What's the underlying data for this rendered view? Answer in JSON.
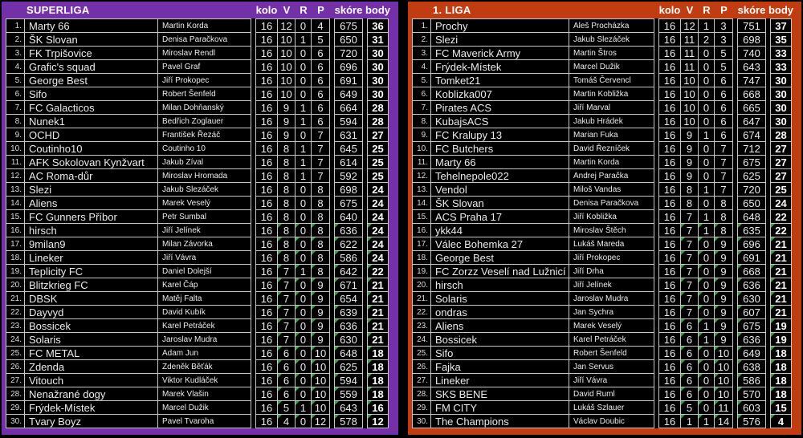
{
  "green_mark_color": "#3F9B4C",
  "tables": [
    {
      "title": "SUPERLIGA",
      "accent": "#7430A8",
      "green_marks_start_rank": 16,
      "columns": {
        "kolo": "kolo",
        "v": "V",
        "r": "R",
        "p": "P",
        "skore": "skóre",
        "body": "body"
      },
      "rows": [
        [
          "1.",
          "Marty 66",
          "Martin Korda",
          "16",
          "12",
          "0",
          "4",
          "675",
          "36"
        ],
        [
          "2.",
          "ŠK Slovan",
          "Denisa Paračkova",
          "16",
          "10",
          "1",
          "5",
          "650",
          "31"
        ],
        [
          "3.",
          "FK Trpišovice",
          "Miroslav Rendl",
          "16",
          "10",
          "0",
          "6",
          "720",
          "30"
        ],
        [
          "4.",
          "Grafic's squad",
          "Pavel Graf",
          "16",
          "10",
          "0",
          "6",
          "696",
          "30"
        ],
        [
          "5.",
          "George Best",
          "Jiří Prokopec",
          "16",
          "10",
          "0",
          "6",
          "691",
          "30"
        ],
        [
          "6.",
          "Sifo",
          "Robert Šenfeld",
          "16",
          "10",
          "0",
          "6",
          "649",
          "30"
        ],
        [
          "7.",
          "FC Galacticos",
          "Milan Dohňanský",
          "16",
          "9",
          "1",
          "6",
          "664",
          "28"
        ],
        [
          "8.",
          "Nunek1",
          "Bedřich Zoglauer",
          "16",
          "9",
          "1",
          "6",
          "594",
          "28"
        ],
        [
          "9.",
          "OCHD",
          "František Řezáč",
          "16",
          "9",
          "0",
          "7",
          "631",
          "27"
        ],
        [
          "10.",
          "Coutinho10",
          "Coutinho 10",
          "16",
          "8",
          "1",
          "7",
          "645",
          "25"
        ],
        [
          "11.",
          "AFK Sokolovan Kynžvart",
          "Jakub Zíval",
          "16",
          "8",
          "1",
          "7",
          "614",
          "25"
        ],
        [
          "12.",
          "AC Roma-důr",
          "Miroslav Hromada",
          "16",
          "8",
          "1",
          "7",
          "592",
          "25"
        ],
        [
          "13.",
          "Slezi",
          "Jakub Slezáček",
          "16",
          "8",
          "0",
          "8",
          "698",
          "24"
        ],
        [
          "14.",
          "Aliens",
          "Marek Veselý",
          "16",
          "8",
          "0",
          "8",
          "675",
          "24"
        ],
        [
          "15.",
          "FC Gunners Příbor",
          "Petr Sumbal",
          "16",
          "8",
          "0",
          "8",
          "640",
          "24"
        ],
        [
          "16.",
          "hirsch",
          "Jiří Jelínek",
          "16",
          "8",
          "0",
          "8",
          "636",
          "24"
        ],
        [
          "17.",
          "9milan9",
          "Milan Závorka",
          "16",
          "8",
          "0",
          "8",
          "622",
          "24"
        ],
        [
          "18.",
          "Lineker",
          "Jiří Vávra",
          "16",
          "8",
          "0",
          "8",
          "586",
          "24"
        ],
        [
          "19.",
          "Teplicity FC",
          "Daniel Dolejší",
          "16",
          "7",
          "1",
          "8",
          "642",
          "22"
        ],
        [
          "20.",
          "Blitzkrieg FC",
          "Karel Čáp",
          "16",
          "7",
          "0",
          "9",
          "671",
          "21"
        ],
        [
          "21.",
          "DBSK",
          "Matěj Falta",
          "16",
          "7",
          "0",
          "9",
          "654",
          "21"
        ],
        [
          "22.",
          "Dayvyd",
          "David Kubík",
          "16",
          "7",
          "0",
          "9",
          "639",
          "21"
        ],
        [
          "23.",
          "Bossicek",
          "Karel Petráček",
          "16",
          "7",
          "0",
          "9",
          "636",
          "21"
        ],
        [
          "24.",
          "Solaris",
          "Jaroslav Mudra",
          "16",
          "7",
          "0",
          "9",
          "630",
          "21"
        ],
        [
          "25.",
          "FC METAL",
          "Adam Jun",
          "16",
          "6",
          "0",
          "10",
          "648",
          "18"
        ],
        [
          "26.",
          "Zdenda",
          "Zdeněk Běťák",
          "16",
          "6",
          "0",
          "10",
          "625",
          "18"
        ],
        [
          "27.",
          "Vitouch",
          "Viktor Kudláček",
          "16",
          "6",
          "0",
          "10",
          "594",
          "18"
        ],
        [
          "28.",
          "Nenažrané dogy",
          "Marek Vlašin",
          "16",
          "6",
          "0",
          "10",
          "559",
          "18"
        ],
        [
          "29.",
          "Frýdek-Místek",
          "Marcel Dužik",
          "16",
          "5",
          "1",
          "10",
          "643",
          "16"
        ],
        [
          "30.",
          "Tvary Boyz",
          "Pavel Tvaroha",
          "16",
          "4",
          "0",
          "12",
          "578",
          "12"
        ]
      ]
    },
    {
      "title": "1. LIGA",
      "accent": "#C23C12",
      "green_marks_start_rank": 16,
      "columns": {
        "kolo": "kolo",
        "v": "V",
        "r": "R",
        "p": "P",
        "skore": "skóre",
        "body": "body"
      },
      "rows": [
        [
          "1.",
          "Prochy",
          "Aleš Procházka",
          "16",
          "12",
          "1",
          "3",
          "751",
          "37"
        ],
        [
          "2.",
          "Slezi",
          "Jakub Slezáček",
          "16",
          "11",
          "2",
          "3",
          "698",
          "35"
        ],
        [
          "3.",
          "FC Maverick Army",
          "Martin Štros",
          "16",
          "11",
          "0",
          "5",
          "740",
          "33"
        ],
        [
          "4.",
          "Frýdek-Místek",
          "Marcel Dužik",
          "16",
          "11",
          "0",
          "5",
          "643",
          "33"
        ],
        [
          "5.",
          "Tomket21",
          "Tomáš Červencl",
          "16",
          "10",
          "0",
          "6",
          "747",
          "30"
        ],
        [
          "6.",
          "Koblizka007",
          "Martin Kobližka",
          "16",
          "10",
          "0",
          "6",
          "668",
          "30"
        ],
        [
          "7.",
          "Pirates ACS",
          "Jiří Marval",
          "16",
          "10",
          "0",
          "6",
          "665",
          "30"
        ],
        [
          "8.",
          "KubajsACS",
          "Jakub Hrádek",
          "16",
          "10",
          "0",
          "6",
          "647",
          "30"
        ],
        [
          "9.",
          "FC Kralupy 13",
          "Marian Fuka",
          "16",
          "9",
          "1",
          "6",
          "674",
          "28"
        ],
        [
          "10.",
          "FC Butchers",
          "David Řezníček",
          "16",
          "9",
          "0",
          "7",
          "712",
          "27"
        ],
        [
          "11.",
          "Marty 66",
          "Martin Korda",
          "16",
          "9",
          "0",
          "7",
          "675",
          "27"
        ],
        [
          "12.",
          "Tehelnepole022",
          "Andrej Paračka",
          "16",
          "9",
          "0",
          "7",
          "625",
          "27"
        ],
        [
          "13.",
          "Vendol",
          "Miloš Vandas",
          "16",
          "8",
          "1",
          "7",
          "720",
          "25"
        ],
        [
          "14.",
          "ŠK Slovan",
          "Denisa Paračkova",
          "16",
          "8",
          "0",
          "8",
          "650",
          "24"
        ],
        [
          "15.",
          "ACS Praha 17",
          "Jiří Kobližka",
          "16",
          "7",
          "1",
          "8",
          "648",
          "22"
        ],
        [
          "16.",
          "ykk44",
          "Miroslav Štěch",
          "16",
          "7",
          "1",
          "8",
          "635",
          "22"
        ],
        [
          "17.",
          "Válec Bohemka 27",
          "Lukáš Mareda",
          "16",
          "7",
          "0",
          "9",
          "696",
          "21"
        ],
        [
          "18.",
          "George Best",
          "Jiří Prokopec",
          "16",
          "7",
          "0",
          "9",
          "691",
          "21"
        ],
        [
          "19.",
          "FC Zorzz Veselí nad Lužnicí",
          "Jiří Drha",
          "16",
          "7",
          "0",
          "9",
          "668",
          "21"
        ],
        [
          "20.",
          "hirsch",
          "Jiří Jelínek",
          "16",
          "7",
          "0",
          "9",
          "636",
          "21"
        ],
        [
          "21.",
          "Solaris",
          "Jaroslav Mudra",
          "16",
          "7",
          "0",
          "9",
          "630",
          "21"
        ],
        [
          "22.",
          "ondras",
          "Jan Sychra",
          "16",
          "7",
          "0",
          "9",
          "607",
          "21"
        ],
        [
          "23.",
          "Aliens",
          "Marek Veselý",
          "16",
          "6",
          "1",
          "9",
          "675",
          "19"
        ],
        [
          "24.",
          "Bossicek",
          "Karel Petráček",
          "16",
          "6",
          "1",
          "9",
          "636",
          "19"
        ],
        [
          "25.",
          "Sifo",
          "Robert Šenfeld",
          "16",
          "6",
          "0",
          "10",
          "649",
          "18"
        ],
        [
          "26.",
          "Fajka",
          "Jan Servus",
          "16",
          "6",
          "0",
          "10",
          "638",
          "18"
        ],
        [
          "27.",
          "Lineker",
          "Jiří Vávra",
          "16",
          "6",
          "0",
          "10",
          "586",
          "18"
        ],
        [
          "28.",
          "SKS BENE",
          "David Ruml",
          "16",
          "6",
          "0",
          "10",
          "570",
          "18"
        ],
        [
          "29.",
          "FM CITY",
          "Lukáš Szlauer",
          "16",
          "5",
          "0",
          "11",
          "603",
          "15"
        ],
        [
          "30.",
          "The Champions",
          "Václav Doubic",
          "16",
          "1",
          "1",
          "14",
          "576",
          "4"
        ]
      ]
    }
  ]
}
